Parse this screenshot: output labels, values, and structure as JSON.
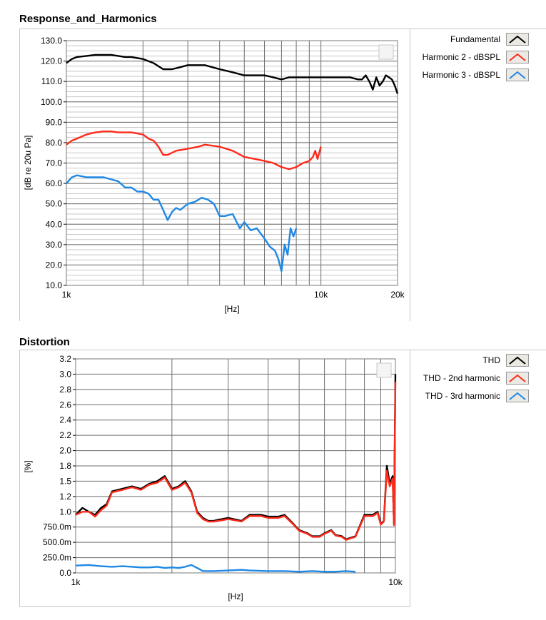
{
  "charts": [
    {
      "title": "Response_and_Harmonics",
      "legend": [
        {
          "label": "Fundamental",
          "color": "#000000",
          "icon": "line-sample-icon"
        },
        {
          "label": "Harmonic 2 - dBSPL",
          "color": "#ff2a1a",
          "icon": "line-sample-icon"
        },
        {
          "label": "Harmonic 3 - dBSPL",
          "color": "#1e88e5",
          "icon": "line-sample-icon"
        }
      ]
    },
    {
      "title": "Distortion",
      "legend": [
        {
          "label": "THD",
          "color": "#000000",
          "icon": "line-sample-icon"
        },
        {
          "label": "THD - 2nd harmonic",
          "color": "#ff2a1a",
          "icon": "line-sample-icon"
        },
        {
          "label": "THD - 3rd harmonic",
          "color": "#1e88e5",
          "icon": "line-sample-icon"
        }
      ]
    }
  ],
  "chart_data": [
    {
      "type": "line",
      "title": "Response_and_Harmonics",
      "xlabel": "[Hz]",
      "ylabel": "[dB re 20u Pa]",
      "xscale": "log",
      "xlim": [
        1000,
        20000
      ],
      "ylim": [
        10,
        130
      ],
      "xticks": [
        {
          "v": 1000,
          "label": "1k"
        },
        {
          "v": 10000,
          "label": "10k"
        },
        {
          "v": 20000,
          "label": "20k"
        }
      ],
      "yticks": [
        {
          "v": 130,
          "label": "130.0"
        },
        {
          "v": 120,
          "label": "120.0"
        },
        {
          "v": 110,
          "label": "110.0"
        },
        {
          "v": 100,
          "label": "100.0"
        },
        {
          "v": 90,
          "label": "90.0"
        },
        {
          "v": 80,
          "label": "80.0"
        },
        {
          "v": 70,
          "label": "70.0"
        },
        {
          "v": 60,
          "label": "60.0"
        },
        {
          "v": 50,
          "label": "50.0"
        },
        {
          "v": 40,
          "label": "40.0"
        },
        {
          "v": 30,
          "label": "30.0"
        },
        {
          "v": 20,
          "label": "20.0"
        },
        {
          "v": 10,
          "label": "10.0"
        }
      ],
      "grid": true,
      "legend_position": "right",
      "series": [
        {
          "name": "Fundamental",
          "color": "#000000",
          "x": [
            1000,
            1050,
            1100,
            1200,
            1300,
            1400,
            1500,
            1600,
            1700,
            1800,
            2000,
            2200,
            2400,
            2600,
            2800,
            3000,
            3500,
            4000,
            4500,
            5000,
            5500,
            6000,
            6500,
            7000,
            7500,
            8000,
            8500,
            9000,
            10000,
            11000,
            12000,
            13000,
            14000,
            14500,
            15000,
            15500,
            16000,
            16500,
            17000,
            17500,
            18000,
            18500,
            19000,
            19500,
            20000
          ],
          "y": [
            119,
            121,
            122,
            122.5,
            123,
            123,
            123,
            122.5,
            122,
            122,
            121,
            119,
            116,
            116,
            117,
            118,
            118,
            116,
            114.5,
            113,
            113,
            113,
            112,
            111,
            112,
            112,
            112,
            112,
            112,
            112,
            112,
            112,
            111,
            111,
            113,
            110,
            106,
            112,
            108,
            110,
            113,
            112,
            111,
            108,
            104
          ]
        },
        {
          "name": "Harmonic 2 - dBSPL",
          "color": "#ff2a1a",
          "x": [
            1000,
            1050,
            1100,
            1200,
            1300,
            1400,
            1500,
            1600,
            1700,
            1800,
            1900,
            2000,
            2100,
            2200,
            2300,
            2400,
            2500,
            2700,
            3000,
            3300,
            3500,
            4000,
            4500,
            5000,
            5500,
            6000,
            6500,
            7000,
            7500,
            8000,
            8500,
            9000,
            9300,
            9500,
            9700,
            10000
          ],
          "y": [
            79,
            81,
            82,
            84,
            85,
            85.5,
            85.5,
            85,
            85,
            85,
            84.5,
            84,
            82,
            81,
            78,
            74,
            74,
            76,
            77,
            78,
            79,
            78,
            76,
            73,
            72,
            71,
            70,
            68,
            67,
            68,
            70,
            71,
            73,
            76,
            72,
            78
          ]
        },
        {
          "name": "Harmonic 3 - dBSPL",
          "color": "#1e88e5",
          "x": [
            1000,
            1050,
            1100,
            1200,
            1300,
            1400,
            1500,
            1600,
            1700,
            1800,
            1900,
            2000,
            2100,
            2200,
            2300,
            2400,
            2500,
            2600,
            2700,
            2800,
            3000,
            3200,
            3400,
            3600,
            3800,
            4000,
            4200,
            4500,
            4800,
            5000,
            5300,
            5600,
            6000,
            6300,
            6600,
            6800,
            7000,
            7200,
            7400,
            7600,
            7800,
            8000
          ],
          "y": [
            60,
            63,
            64,
            63,
            63,
            63,
            62,
            61,
            58,
            58,
            56,
            56,
            55,
            52,
            52,
            47,
            42,
            46,
            48,
            47,
            50,
            51,
            53,
            52,
            50,
            44,
            44,
            45,
            38,
            41,
            37,
            38,
            33,
            29,
            27,
            23,
            17,
            30,
            25,
            38,
            34,
            38
          ]
        }
      ]
    },
    {
      "type": "line",
      "title": "Distortion",
      "xlabel": "[Hz]",
      "ylabel": "[%]",
      "xscale": "log",
      "xlim": [
        1000,
        10000
      ],
      "ylim": [
        0,
        3.2
      ],
      "xticks": [
        {
          "v": 1000,
          "label": "1k"
        },
        {
          "v": 10000,
          "label": "10k"
        }
      ],
      "yticks": [
        {
          "v": 3.2,
          "label": "3.2"
        },
        {
          "v": 3.0,
          "label": "3.0"
        },
        {
          "v": 2.8,
          "label": "2.8"
        },
        {
          "v": 2.6,
          "label": "2.6"
        },
        {
          "v": 2.4,
          "label": "2.4"
        },
        {
          "v": 2.2,
          "label": "2.2"
        },
        {
          "v": 2.0,
          "label": "2.0"
        },
        {
          "v": 1.8,
          "label": "1.8"
        },
        {
          "v": 1.5,
          "label": "1.5"
        },
        {
          "v": 1.2,
          "label": "1.2"
        },
        {
          "v": 1.0,
          "label": "1.0"
        },
        {
          "v": 0.75,
          "label": "750.0m"
        },
        {
          "v": 0.5,
          "label": "500.0m"
        },
        {
          "v": 0.25,
          "label": "250.0m"
        },
        {
          "v": 0.0,
          "label": "0.0"
        }
      ],
      "grid": true,
      "legend_position": "right",
      "series": [
        {
          "name": "THD",
          "color": "#000000",
          "x": [
            1000,
            1050,
            1100,
            1150,
            1200,
            1250,
            1300,
            1400,
            1500,
            1600,
            1700,
            1800,
            1900,
            2000,
            2100,
            2200,
            2300,
            2400,
            2500,
            2600,
            2700,
            2800,
            3000,
            3300,
            3500,
            3800,
            4000,
            4300,
            4500,
            4800,
            5000,
            5300,
            5500,
            5800,
            6000,
            6300,
            6500,
            6800,
            7000,
            7500,
            8000,
            8500,
            8800,
            9000,
            9200,
            9400,
            9600,
            9800,
            9900,
            10000
          ],
          "y": [
            0.95,
            1.05,
            1.0,
            0.95,
            1.05,
            1.1,
            1.3,
            1.35,
            1.4,
            1.35,
            1.45,
            1.5,
            1.6,
            1.35,
            1.4,
            1.5,
            1.3,
            1.0,
            0.9,
            0.85,
            0.85,
            0.87,
            0.9,
            0.85,
            0.95,
            0.95,
            0.92,
            0.92,
            0.95,
            0.8,
            0.7,
            0.65,
            0.6,
            0.6,
            0.65,
            0.7,
            0.62,
            0.6,
            0.55,
            0.6,
            0.95,
            0.95,
            1.0,
            0.8,
            0.85,
            1.8,
            1.45,
            1.6,
            0.8,
            3.0
          ]
        },
        {
          "name": "THD - 2nd harmonic",
          "color": "#ff2a1a",
          "x": [
            1000,
            1050,
            1100,
            1150,
            1200,
            1250,
            1300,
            1400,
            1500,
            1600,
            1700,
            1800,
            1900,
            2000,
            2100,
            2200,
            2300,
            2400,
            2500,
            2600,
            2700,
            2800,
            3000,
            3300,
            3500,
            3800,
            4000,
            4300,
            4500,
            4800,
            5000,
            5300,
            5500,
            5800,
            6000,
            6300,
            6500,
            6800,
            7000,
            7500,
            8000,
            8500,
            8800,
            9000,
            9200,
            9400,
            9600,
            9800,
            9900,
            10000
          ],
          "y": [
            0.95,
            1.0,
            1.0,
            0.92,
            1.02,
            1.08,
            1.28,
            1.33,
            1.38,
            1.33,
            1.43,
            1.47,
            1.57,
            1.33,
            1.38,
            1.47,
            1.28,
            0.98,
            0.88,
            0.84,
            0.84,
            0.85,
            0.88,
            0.84,
            0.93,
            0.93,
            0.9,
            0.9,
            0.93,
            0.79,
            0.69,
            0.64,
            0.59,
            0.59,
            0.64,
            0.69,
            0.61,
            0.59,
            0.54,
            0.59,
            0.93,
            0.93,
            0.98,
            0.79,
            0.84,
            1.7,
            1.4,
            1.55,
            0.78,
            2.9
          ]
        },
        {
          "name": "THD - 3rd harmonic",
          "color": "#1e88e5",
          "x": [
            1000,
            1100,
            1200,
            1300,
            1400,
            1500,
            1600,
            1700,
            1800,
            1900,
            2000,
            2100,
            2200,
            2300,
            2400,
            2500,
            2700,
            3000,
            3300,
            3500,
            4000,
            4500,
            5000,
            5500,
            6000,
            6500,
            7000,
            7500
          ],
          "y": [
            0.12,
            0.13,
            0.11,
            0.1,
            0.11,
            0.1,
            0.09,
            0.09,
            0.1,
            0.08,
            0.09,
            0.08,
            0.1,
            0.13,
            0.08,
            0.03,
            0.03,
            0.04,
            0.05,
            0.04,
            0.03,
            0.03,
            0.02,
            0.03,
            0.02,
            0.02,
            0.03,
            0.02
          ]
        }
      ]
    }
  ]
}
